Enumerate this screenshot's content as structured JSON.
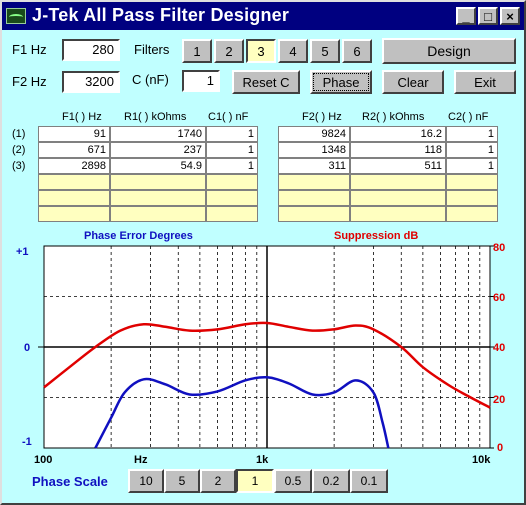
{
  "window": {
    "title": "J-Tek All Pass Filter Designer",
    "controls": {
      "minimize": "_",
      "maximize": "□",
      "close": "×"
    }
  },
  "inputs": {
    "f1_label": "F1 Hz",
    "f1_value": "280",
    "f2_label": "F2 Hz",
    "f2_value": "3200",
    "c_label": "C (nF)",
    "c_value": "1"
  },
  "filters": {
    "label": "Filters",
    "options": [
      "1",
      "2",
      "3",
      "4",
      "5",
      "6"
    ],
    "selected": "3"
  },
  "buttons": {
    "design": "Design",
    "reset_c": "Reset C",
    "phase": "Phase",
    "clear": "Clear",
    "exit": "Exit"
  },
  "table_left": {
    "headers": [
      "F1( ) Hz",
      "R1( ) kOhms",
      "C1( ) nF"
    ],
    "rows": [
      [
        "91",
        "1740",
        "1"
      ],
      [
        "671",
        "237",
        "1"
      ],
      [
        "2898",
        "54.9",
        "1"
      ],
      [
        "",
        "",
        ""
      ],
      [
        "",
        "",
        ""
      ],
      [
        "",
        "",
        ""
      ]
    ]
  },
  "table_right": {
    "headers": [
      "F2( ) Hz",
      "R2( ) kOhms",
      "C2( ) nF"
    ],
    "rows": [
      [
        "9824",
        "16.2",
        "1"
      ],
      [
        "1348",
        "118",
        "1"
      ],
      [
        "311",
        "511",
        "1"
      ],
      [
        "",
        "",
        ""
      ],
      [
        "",
        "",
        ""
      ],
      [
        "",
        "",
        ""
      ]
    ]
  },
  "row_labels": [
    "(1)",
    "(2)",
    "(3)"
  ],
  "plot": {
    "left_title": "Phase Error Degrees",
    "right_title": "Suppression dB",
    "left_ticks": [
      "+1",
      "0",
      "-1"
    ],
    "right_ticks": [
      "80",
      "60",
      "40",
      "20",
      "0"
    ],
    "x_ticks": [
      "100",
      "Hz",
      "1k",
      "10k"
    ],
    "colors": {
      "phase": "#1010c0",
      "suppression": "#e00000",
      "left_axis": "#1010c0",
      "right_axis": "#e00000"
    }
  },
  "chart_data": {
    "type": "line",
    "x_scale": "log",
    "xlim": [
      100,
      10000
    ],
    "series": [
      {
        "axis": "left",
        "x": [
          170,
          200,
          230,
          280,
          350,
          450,
          600,
          800,
          1000,
          1250,
          1600,
          2000,
          2500,
          3000,
          3300,
          3500
        ],
        "y": [
          -1.0,
          -0.7,
          -0.45,
          -0.32,
          -0.37,
          -0.47,
          -0.44,
          -0.33,
          -0.3,
          -0.36,
          -0.47,
          -0.45,
          -0.33,
          -0.45,
          -0.75,
          -1.0
        ]
      },
      {
        "axis": "right",
        "x": [
          100,
          130,
          170,
          220,
          280,
          350,
          450,
          600,
          800,
          1000,
          1250,
          1600,
          2000,
          2500,
          3000,
          4000,
          5000,
          6500,
          8000,
          10000
        ],
        "y": [
          24,
          32,
          40,
          46.5,
          49,
          48,
          46.5,
          47,
          49,
          49.5,
          48,
          46.5,
          47,
          48.5,
          47,
          40,
          32,
          25,
          20.5,
          16
        ]
      }
    ],
    "ylim_left": [
      -1,
      1
    ],
    "ylim_right": [
      0,
      80
    ],
    "grid": true
  },
  "phase_scale": {
    "label": "Phase Scale",
    "options": [
      "10",
      "5",
      "2",
      "1",
      "0.5",
      "0.2",
      "0.1"
    ],
    "selected": "1"
  }
}
